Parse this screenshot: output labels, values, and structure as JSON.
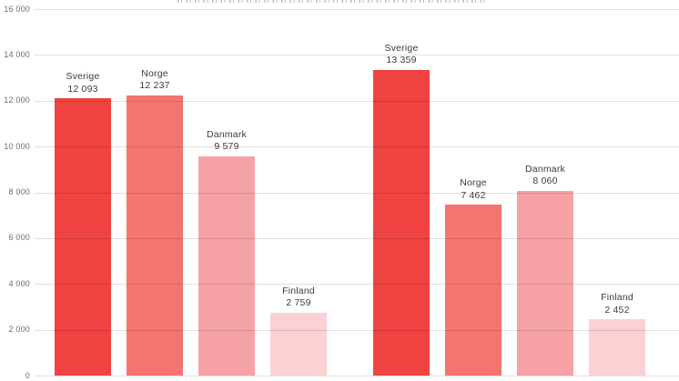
{
  "chart_data": {
    "type": "bar",
    "title": "",
    "grid": true,
    "legend": "none",
    "y_axis": {
      "min": 0,
      "max": 16000,
      "tick_interval": 2000,
      "ticks": [
        {
          "value": 16000,
          "label": "16 000"
        },
        {
          "value": 14000,
          "label": "14 000"
        },
        {
          "value": 12000,
          "label": "12 000"
        },
        {
          "value": 10000,
          "label": "10 000"
        },
        {
          "value": 8000,
          "label": "8 000"
        },
        {
          "value": 6000,
          "label": "6 000"
        },
        {
          "value": 4000,
          "label": "4 000"
        },
        {
          "value": 2000,
          "label": "2 000"
        },
        {
          "value": 0,
          "label": "0"
        }
      ]
    },
    "palette": {
      "Sverige": "#ee4340",
      "Norge": "#f47472",
      "Danmark": "#f6a2a5",
      "Finland": "#fbd1d3"
    },
    "groups": [
      {
        "bars": [
          {
            "country": "Sverige",
            "value": 12093,
            "value_label": "12 093"
          },
          {
            "country": "Norge",
            "value": 12237,
            "value_label": "12 237"
          },
          {
            "country": "Danmark",
            "value": 9579,
            "value_label": "9 579"
          },
          {
            "country": "Finland",
            "value": 2759,
            "value_label": "2 759"
          }
        ]
      },
      {
        "bars": [
          {
            "country": "Sverige",
            "value": 13359,
            "value_label": "13 359"
          },
          {
            "country": "Norge",
            "value": 7462,
            "value_label": "7 462"
          },
          {
            "country": "Danmark",
            "value": 8060,
            "value_label": "8 060"
          },
          {
            "country": "Finland",
            "value": 2452,
            "value_label": "2 452"
          }
        ]
      }
    ]
  }
}
